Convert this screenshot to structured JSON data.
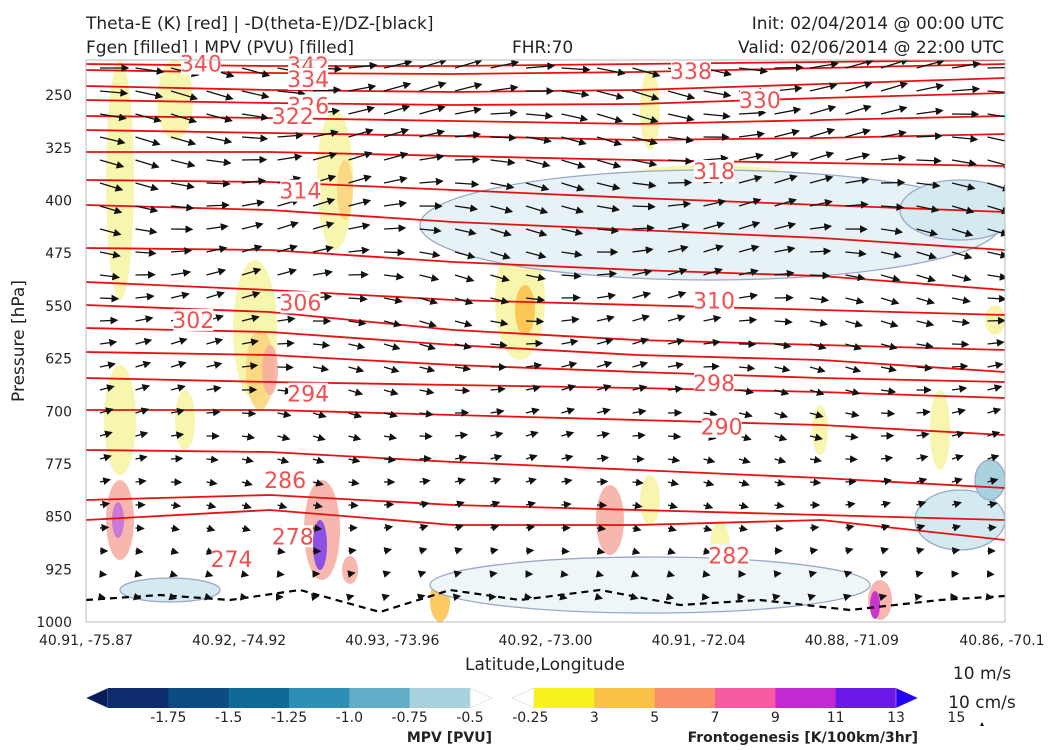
{
  "header": {
    "line1_left": "Theta-E (K) [red] | -D(theta-E)/DZ-[black]",
    "line2_left": "Fgen [filled] | MPV (PVU) [filled]",
    "fhr": "FHR:70",
    "init": "Init: 02/04/2014 @ 00:00 UTC",
    "valid": "Valid: 02/06/2014 @ 22:00 UTC"
  },
  "chart_data": {
    "type": "cross-section",
    "xlabel": "Latitude,Longitude",
    "ylabel": "Pressure [hPa]",
    "x_ticks": [
      "40.91, -75.87",
      "40.92, -74.92",
      "40.93, -73.96",
      "40.92, -73.00",
      "40.91, -72.04",
      "40.88, -71.09",
      "40.86, -70.1"
    ],
    "y_ticks": [
      250,
      325,
      400,
      475,
      550,
      625,
      700,
      775,
      850,
      925,
      1000
    ],
    "ylim": [
      1000,
      200
    ],
    "theta_e_labels": [
      {
        "value": "340",
        "x_index": 0.75,
        "p": 205
      },
      {
        "value": "342",
        "x_index": 1.45,
        "p": 207
      },
      {
        "value": "334",
        "x_index": 1.45,
        "p": 227
      },
      {
        "value": "338",
        "x_index": 3.95,
        "p": 216
      },
      {
        "value": "326",
        "x_index": 1.45,
        "p": 265
      },
      {
        "value": "330",
        "x_index": 4.4,
        "p": 257
      },
      {
        "value": "322",
        "x_index": 1.35,
        "p": 280
      },
      {
        "value": "318",
        "x_index": 4.1,
        "p": 358
      },
      {
        "value": "314",
        "x_index": 1.4,
        "p": 386
      },
      {
        "value": "306",
        "x_index": 1.4,
        "p": 545
      },
      {
        "value": "310",
        "x_index": 4.1,
        "p": 542
      },
      {
        "value": "302",
        "x_index": 0.7,
        "p": 570
      },
      {
        "value": "294",
        "x_index": 1.45,
        "p": 675
      },
      {
        "value": "298",
        "x_index": 4.1,
        "p": 660
      },
      {
        "value": "290",
        "x_index": 4.15,
        "p": 722
      },
      {
        "value": "286",
        "x_index": 1.3,
        "p": 798
      },
      {
        "value": "278",
        "x_index": 1.35,
        "p": 878
      },
      {
        "value": "282",
        "x_index": 4.2,
        "p": 905
      },
      {
        "value": "274",
        "x_index": 0.95,
        "p": 910
      }
    ],
    "colorbar_mpv": {
      "label": "MPV [PVU]",
      "ticks": [
        "-1.75",
        "-1.5",
        "-1.25",
        "-1.0",
        "-0.75",
        "-0.5",
        "-0.25"
      ],
      "colors": [
        "#081d58",
        "#0c2c6e",
        "#0d4b84",
        "#0e6a96",
        "#2d8fb4",
        "#62aec9",
        "#a7d2de",
        "#ffffff"
      ]
    },
    "colorbar_fgen": {
      "label": "Frontogenesis [K/100km/3hr]",
      "ticks": [
        "3",
        "5",
        "7",
        "9",
        "11",
        "13",
        "15"
      ],
      "colors": [
        "#ffffff",
        "#f7f11c",
        "#fbc046",
        "#fa8f6b",
        "#f75ba1",
        "#c02ad0",
        "#6a19e8",
        "#2400f5"
      ]
    },
    "vector_legend": [
      "10 m/s",
      "10 cm/s"
    ]
  }
}
